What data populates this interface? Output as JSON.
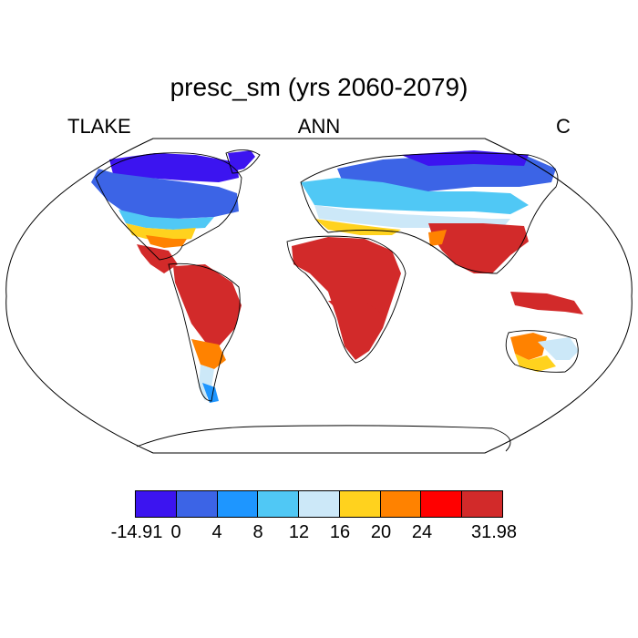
{
  "header": {
    "title": "presc_sm (yrs 2060-2079)",
    "left": "TLAKE",
    "center": "ANN",
    "right": "C"
  },
  "colorbar": {
    "colors": [
      "#3c14f0",
      "#3c64e6",
      "#1e96ff",
      "#50c8f5",
      "#cce8f8",
      "#ffd21e",
      "#ff8200",
      "#ff0000",
      "#d22a2a"
    ],
    "labels": [
      "-14.91",
      "0",
      "4",
      "8",
      "12",
      "16",
      "20",
      "24",
      "31.98"
    ]
  },
  "map": {
    "projection": "Robinson",
    "field": "presc_sm",
    "season": "ANN",
    "units": "C"
  }
}
